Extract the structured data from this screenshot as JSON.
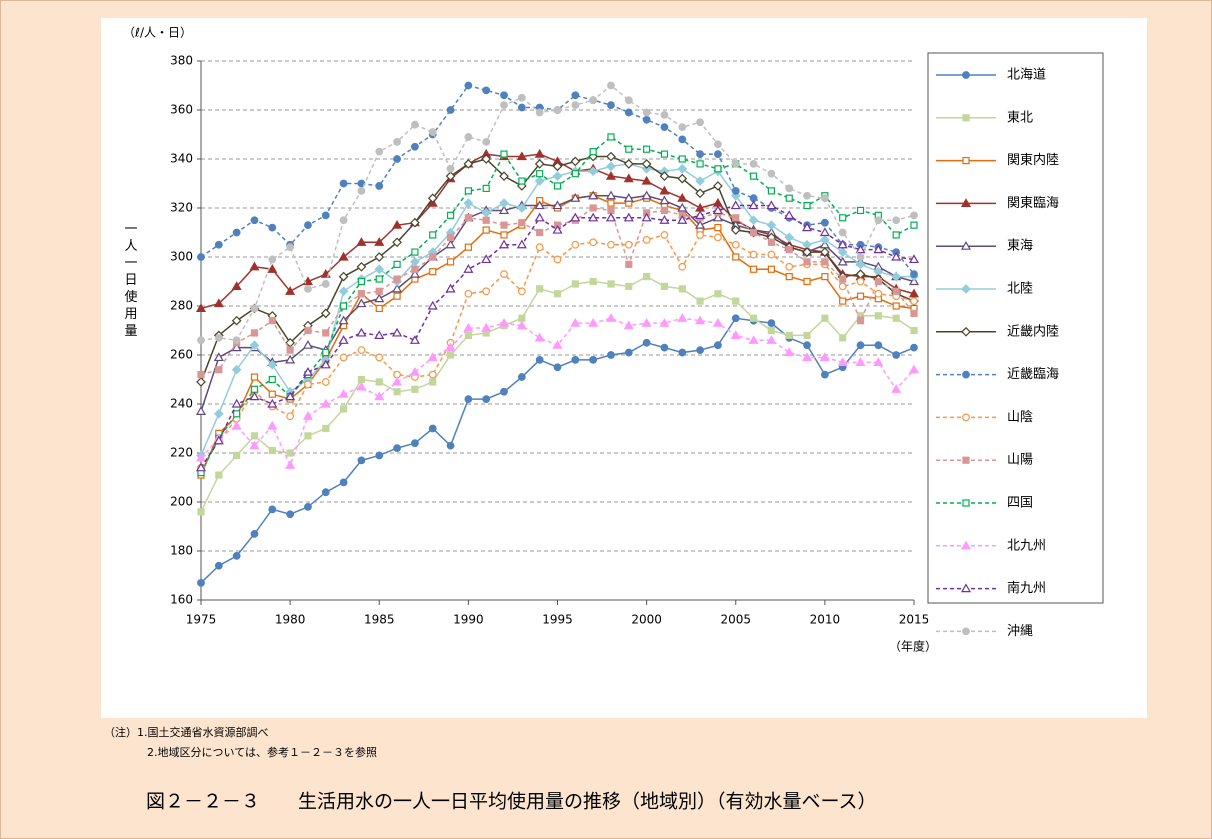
{
  "chart_data": {
    "type": "line",
    "title": "図２－２－３　　生活用水の一人一日平均使用量の推移（地域別）（有効水量ベース）",
    "y_unit": "（ℓ/人・日）",
    "x_unit": "（年度）",
    "y_label": "一人一日使用量",
    "notes": [
      "（注）1.国土交通省水資源部調べ",
      "2.地域区分については、参考１－２－３を参照"
    ],
    "x": [
      1975,
      1976,
      1977,
      1978,
      1979,
      1980,
      1981,
      1982,
      1983,
      1984,
      1985,
      1986,
      1987,
      1988,
      1989,
      1990,
      1991,
      1992,
      1993,
      1994,
      1995,
      1996,
      1997,
      1998,
      1999,
      2000,
      2001,
      2002,
      2003,
      2004,
      2005,
      2006,
      2007,
      2008,
      2009,
      2010,
      2011,
      2012,
      2013,
      2014,
      2015
    ],
    "xlim": [
      1975,
      2015
    ],
    "xticks": [
      1975,
      1980,
      1985,
      1990,
      1995,
      2000,
      2005,
      2010,
      2015
    ],
    "ylim": [
      160,
      380
    ],
    "yticks": [
      160,
      180,
      200,
      220,
      240,
      260,
      280,
      300,
      320,
      340,
      360,
      380
    ],
    "grid": true,
    "series": [
      {
        "name": "北海道",
        "color": "#4f81bd",
        "marker": "circle",
        "filled": true,
        "dashed": false,
        "values": [
          167,
          174,
          178,
          187,
          197,
          195,
          198,
          204,
          208,
          217,
          219,
          222,
          224,
          230,
          223,
          242,
          242,
          245,
          251,
          258,
          255,
          258,
          258,
          260,
          261,
          265,
          263,
          261,
          262,
          264,
          275,
          274,
          273,
          267,
          264,
          252,
          255,
          264,
          264,
          260,
          263
        ]
      },
      {
        "name": "東北",
        "color": "#c3d69b",
        "marker": "square",
        "filled": true,
        "dashed": false,
        "values": [
          196,
          211,
          219,
          227,
          221,
          220,
          227,
          230,
          238,
          250,
          249,
          245,
          246,
          249,
          260,
          268,
          269,
          272,
          275,
          287,
          285,
          289,
          290,
          289,
          288,
          292,
          288,
          287,
          282,
          285,
          282,
          275,
          270,
          268,
          268,
          275,
          267,
          276,
          276,
          275,
          270
        ]
      },
      {
        "name": "関東内陸",
        "color": "#e46c0a",
        "marker": "square",
        "filled": false,
        "dashed": false,
        "values": [
          211,
          228,
          235,
          251,
          244,
          242,
          248,
          258,
          272,
          285,
          279,
          284,
          291,
          294,
          298,
          304,
          311,
          309,
          313,
          323,
          320,
          324,
          325,
          322,
          322,
          324,
          321,
          319,
          311,
          312,
          300,
          295,
          295,
          292,
          290,
          292,
          282,
          284,
          283,
          280,
          279
        ]
      },
      {
        "name": "関東臨海",
        "color": "#a0322d",
        "marker": "triangle",
        "filled": true,
        "dashed": false,
        "values": [
          279,
          281,
          288,
          296,
          295,
          286,
          290,
          293,
          300,
          306,
          306,
          313,
          314,
          322,
          332,
          338,
          342,
          341,
          341,
          342,
          339,
          335,
          336,
          333,
          332,
          331,
          327,
          324,
          320,
          322,
          315,
          311,
          309,
          305,
          303,
          302,
          293,
          292,
          292,
          287,
          285
        ]
      },
      {
        "name": "東海",
        "color": "#604a7b",
        "marker": "triangle",
        "filled": false,
        "dashed": false,
        "values": [
          237,
          259,
          263,
          263,
          257,
          258,
          264,
          262,
          274,
          281,
          283,
          287,
          293,
          300,
          305,
          316,
          319,
          319,
          321,
          321,
          321,
          324,
          325,
          325,
          324,
          325,
          323,
          320,
          313,
          316,
          313,
          311,
          310,
          304,
          302,
          305,
          298,
          298,
          296,
          292,
          290
        ]
      },
      {
        "name": "北陸",
        "color": "#93cddd",
        "marker": "diamond",
        "filled": true,
        "dashed": false,
        "values": [
          219,
          236,
          254,
          264,
          256,
          245,
          250,
          258,
          286,
          291,
          295,
          290,
          298,
          302,
          310,
          322,
          318,
          322,
          320,
          331,
          333,
          335,
          335,
          337,
          338,
          336,
          335,
          336,
          331,
          335,
          325,
          315,
          313,
          308,
          305,
          307,
          302,
          297,
          294,
          292,
          292
        ]
      },
      {
        "name": "近畿内陸",
        "color": "#4a452a",
        "marker": "diamond",
        "filled": false,
        "dashed": false,
        "values": [
          249,
          268,
          274,
          279,
          276,
          265,
          272,
          277,
          292,
          296,
          300,
          306,
          314,
          324,
          333,
          338,
          340,
          333,
          329,
          338,
          337,
          339,
          341,
          341,
          338,
          338,
          333,
          332,
          326,
          329,
          311,
          310,
          308,
          304,
          302,
          302,
          292,
          293,
          291,
          285,
          282
        ]
      },
      {
        "name": "近畿臨海",
        "color": "#4f81bd",
        "marker": "circle",
        "filled": true,
        "dashed": true,
        "values": [
          300,
          305,
          310,
          315,
          312,
          305,
          313,
          317,
          330,
          330,
          329,
          340,
          345,
          350,
          360,
          370,
          368,
          366,
          361,
          361,
          360,
          366,
          364,
          362,
          359,
          356,
          353,
          348,
          342,
          342,
          327,
          324,
          320,
          316,
          313,
          314,
          305,
          305,
          304,
          302,
          293
        ]
      },
      {
        "name": "山陰",
        "color": "#f79646",
        "marker": "circle",
        "filled": false,
        "dashed": true,
        "values": [
          214,
          225,
          234,
          245,
          239,
          235,
          248,
          249,
          259,
          262,
          259,
          252,
          251,
          252,
          265,
          285,
          286,
          293,
          286,
          304,
          299,
          305,
          306,
          305,
          305,
          307,
          309,
          296,
          309,
          308,
          305,
          301,
          301,
          296,
          297,
          297,
          288,
          290,
          285,
          284,
          282
        ]
      },
      {
        "name": "山陽",
        "color": "#d99694",
        "marker": "square",
        "filled": true,
        "dashed": true,
        "values": [
          252,
          254,
          265,
          269,
          274,
          262,
          270,
          269,
          280,
          285,
          286,
          291,
          295,
          300,
          308,
          316,
          315,
          313,
          314,
          310,
          313,
          315,
          320,
          319,
          297,
          318,
          319,
          317,
          316,
          318,
          316,
          310,
          306,
          303,
          298,
          298,
          291,
          274,
          290,
          286,
          277
        ]
      },
      {
        "name": "四国",
        "color": "#00b050",
        "marker": "square",
        "filled": false,
        "dashed": true,
        "values": [
          212,
          226,
          236,
          246,
          250,
          243,
          252,
          261,
          280,
          290,
          291,
          297,
          302,
          309,
          317,
          327,
          328,
          342,
          331,
          334,
          329,
          334,
          343,
          349,
          344,
          344,
          342,
          340,
          338,
          336,
          338,
          333,
          327,
          324,
          321,
          325,
          316,
          319,
          317,
          309,
          313
        ]
      },
      {
        "name": "北九州",
        "color": "#ff99ff",
        "marker": "triangle",
        "filled": true,
        "dashed": true,
        "values": [
          218,
          226,
          231,
          223,
          231,
          215,
          235,
          240,
          244,
          247,
          243,
          249,
          253,
          259,
          263,
          271,
          271,
          273,
          272,
          267,
          264,
          273,
          273,
          275,
          272,
          273,
          273,
          275,
          274,
          273,
          268,
          266,
          266,
          261,
          259,
          259,
          257,
          257,
          257,
          246,
          254
        ]
      },
      {
        "name": "南九州",
        "color": "#7030a0",
        "marker": "triangle",
        "filled": false,
        "dashed": true,
        "values": [
          214,
          225,
          240,
          243,
          240,
          243,
          253,
          256,
          266,
          269,
          268,
          269,
          266,
          280,
          287,
          295,
          299,
          305,
          305,
          316,
          311,
          316,
          316,
          316,
          316,
          316,
          315,
          315,
          317,
          319,
          321,
          321,
          321,
          317,
          312,
          310,
          305,
          303,
          303,
          300,
          299
        ]
      },
      {
        "name": "沖縄",
        "color": "#bfbfbf",
        "marker": "circle",
        "filled": true,
        "dashed": true,
        "values": [
          266,
          267,
          266,
          279,
          299,
          304,
          287,
          289,
          315,
          327,
          343,
          347,
          354,
          351,
          336,
          349,
          347,
          362,
          365,
          359,
          360,
          362,
          364,
          370,
          364,
          359,
          358,
          353,
          355,
          346,
          338,
          338,
          334,
          328,
          325,
          324,
          310,
          300,
          315,
          315,
          317
        ]
      }
    ]
  }
}
